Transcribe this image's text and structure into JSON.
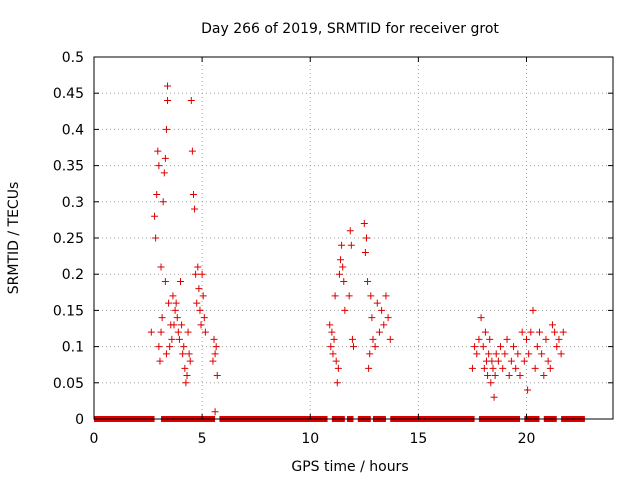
{
  "chart_data": {
    "type": "scatter",
    "title": "Day 266 of 2019, SRMTID for receiver grot",
    "xlabel": "GPS time / hours",
    "ylabel": "SRMTID / TECUs",
    "xlim": [
      0,
      24
    ],
    "ylim": [
      0,
      0.5
    ],
    "x_ticks": [
      0,
      5,
      10,
      15,
      20
    ],
    "x_tick_labels": [
      "0",
      "5",
      "10",
      "15",
      "20"
    ],
    "y_ticks": [
      0,
      0.05,
      0.1,
      0.15,
      0.2,
      0.25,
      0.3,
      0.35,
      0.4,
      0.45,
      0.5
    ],
    "y_tick_labels": [
      "0",
      "0.05",
      "0.1",
      "0.15",
      "0.2",
      "0.25",
      "0.3",
      "0.35",
      "0.4",
      "0.45",
      "0.5"
    ],
    "grid": true,
    "marker": "+",
    "color": "#dd0000",
    "series": [
      {
        "name": "SRMTID",
        "points": [
          [
            2.65,
            0.12
          ],
          [
            2.8,
            0.28
          ],
          [
            2.85,
            0.25
          ],
          [
            2.9,
            0.31
          ],
          [
            2.95,
            0.37
          ],
          [
            3.0,
            0.35
          ],
          [
            3.0,
            0.1
          ],
          [
            3.05,
            0.08
          ],
          [
            3.1,
            0.21
          ],
          [
            3.1,
            0.12
          ],
          [
            3.15,
            0.14
          ],
          [
            3.2,
            0.3
          ],
          [
            3.25,
            0.34
          ],
          [
            3.3,
            0.36
          ],
          [
            3.3,
            0.19
          ],
          [
            3.35,
            0.4
          ],
          [
            3.35,
            0.09
          ],
          [
            3.4,
            0.44
          ],
          [
            3.4,
            0.46
          ],
          [
            3.45,
            0.16
          ],
          [
            3.5,
            0.1
          ],
          [
            3.55,
            0.13
          ],
          [
            3.6,
            0.11
          ],
          [
            3.65,
            0.17
          ],
          [
            3.7,
            0.13
          ],
          [
            3.75,
            0.15
          ],
          [
            3.8,
            0.16
          ],
          [
            3.85,
            0.14
          ],
          [
            3.9,
            0.12
          ],
          [
            3.95,
            0.11
          ],
          [
            4.0,
            0.19
          ],
          [
            4.05,
            0.13
          ],
          [
            4.1,
            0.09
          ],
          [
            4.15,
            0.1
          ],
          [
            4.2,
            0.07
          ],
          [
            4.25,
            0.05
          ],
          [
            4.3,
            0.06
          ],
          [
            4.35,
            0.12
          ],
          [
            4.4,
            0.09
          ],
          [
            4.45,
            0.08
          ],
          [
            4.5,
            0.44
          ],
          [
            4.55,
            0.37
          ],
          [
            4.6,
            0.31
          ],
          [
            4.65,
            0.29
          ],
          [
            4.7,
            0.2
          ],
          [
            4.75,
            0.16
          ],
          [
            4.8,
            0.21
          ],
          [
            4.85,
            0.18
          ],
          [
            4.9,
            0.15
          ],
          [
            4.95,
            0.13
          ],
          [
            5.0,
            0.2
          ],
          [
            5.05,
            0.17
          ],
          [
            5.1,
            0.14
          ],
          [
            5.15,
            0.12
          ],
          [
            5.5,
            0.08
          ],
          [
            5.55,
            0.11
          ],
          [
            5.6,
            0.09
          ],
          [
            5.65,
            0.1
          ],
          [
            5.7,
            0.06
          ],
          [
            5.6,
            0.01
          ],
          [
            10.9,
            0.13
          ],
          [
            10.95,
            0.1
          ],
          [
            11.0,
            0.12
          ],
          [
            11.05,
            0.09
          ],
          [
            11.1,
            0.11
          ],
          [
            11.15,
            0.17
          ],
          [
            11.2,
            0.08
          ],
          [
            11.25,
            0.05
          ],
          [
            11.3,
            0.07
          ],
          [
            11.35,
            0.2
          ],
          [
            11.4,
            0.22
          ],
          [
            11.45,
            0.24
          ],
          [
            11.5,
            0.21
          ],
          [
            11.55,
            0.19
          ],
          [
            11.6,
            0.15
          ],
          [
            11.8,
            0.17
          ],
          [
            11.85,
            0.26
          ],
          [
            11.9,
            0.24
          ],
          [
            11.95,
            0.11
          ],
          [
            12.0,
            0.1
          ],
          [
            12.5,
            0.27
          ],
          [
            12.55,
            0.23
          ],
          [
            12.6,
            0.25
          ],
          [
            12.65,
            0.19
          ],
          [
            12.7,
            0.07
          ],
          [
            12.75,
            0.09
          ],
          [
            12.8,
            0.17
          ],
          [
            12.85,
            0.14
          ],
          [
            12.9,
            0.11
          ],
          [
            13.0,
            0.1
          ],
          [
            13.1,
            0.16
          ],
          [
            13.2,
            0.12
          ],
          [
            13.3,
            0.15
          ],
          [
            13.4,
            0.13
          ],
          [
            13.5,
            0.17
          ],
          [
            13.6,
            0.14
          ],
          [
            13.7,
            0.11
          ],
          [
            17.5,
            0.07
          ],
          [
            17.6,
            0.1
          ],
          [
            17.7,
            0.09
          ],
          [
            17.8,
            0.11
          ],
          [
            17.9,
            0.14
          ],
          [
            18.0,
            0.1
          ],
          [
            18.05,
            0.07
          ],
          [
            18.1,
            0.12
          ],
          [
            18.15,
            0.08
          ],
          [
            18.2,
            0.06
          ],
          [
            18.25,
            0.09
          ],
          [
            18.3,
            0.11
          ],
          [
            18.35,
            0.05
          ],
          [
            18.4,
            0.08
          ],
          [
            18.45,
            0.07
          ],
          [
            18.5,
            0.03
          ],
          [
            18.55,
            0.06
          ],
          [
            18.6,
            0.09
          ],
          [
            18.7,
            0.08
          ],
          [
            18.8,
            0.1
          ],
          [
            18.9,
            0.07
          ],
          [
            19.0,
            0.09
          ],
          [
            19.1,
            0.11
          ],
          [
            19.2,
            0.06
          ],
          [
            19.3,
            0.08
          ],
          [
            19.4,
            0.1
          ],
          [
            19.5,
            0.07
          ],
          [
            19.6,
            0.09
          ],
          [
            19.7,
            0.06
          ],
          [
            19.8,
            0.12
          ],
          [
            19.9,
            0.08
          ],
          [
            20.0,
            0.11
          ],
          [
            20.05,
            0.04
          ],
          [
            20.1,
            0.09
          ],
          [
            20.2,
            0.12
          ],
          [
            20.3,
            0.15
          ],
          [
            20.4,
            0.07
          ],
          [
            20.5,
            0.1
          ],
          [
            20.6,
            0.12
          ],
          [
            20.7,
            0.09
          ],
          [
            20.8,
            0.06
          ],
          [
            20.9,
            0.11
          ],
          [
            21.0,
            0.08
          ],
          [
            21.1,
            0.07
          ],
          [
            21.2,
            0.13
          ],
          [
            21.3,
            0.12
          ],
          [
            21.4,
            0.1
          ],
          [
            21.5,
            0.11
          ],
          [
            21.6,
            0.09
          ],
          [
            21.7,
            0.12
          ]
        ],
        "zero_baseline": {
          "segments": [
            [
              0,
              2.8
            ],
            [
              3.1,
              5.6
            ],
            [
              5.8,
              10.8
            ],
            [
              11.0,
              11.6
            ],
            [
              11.7,
              12.0
            ],
            [
              12.2,
              12.8
            ],
            [
              12.9,
              13.5
            ],
            [
              13.7,
              17.6
            ],
            [
              17.8,
              19.7
            ],
            [
              19.9,
              20.6
            ],
            [
              20.8,
              21.4
            ],
            [
              21.6,
              22.7
            ]
          ],
          "value": 0
        }
      }
    ]
  }
}
